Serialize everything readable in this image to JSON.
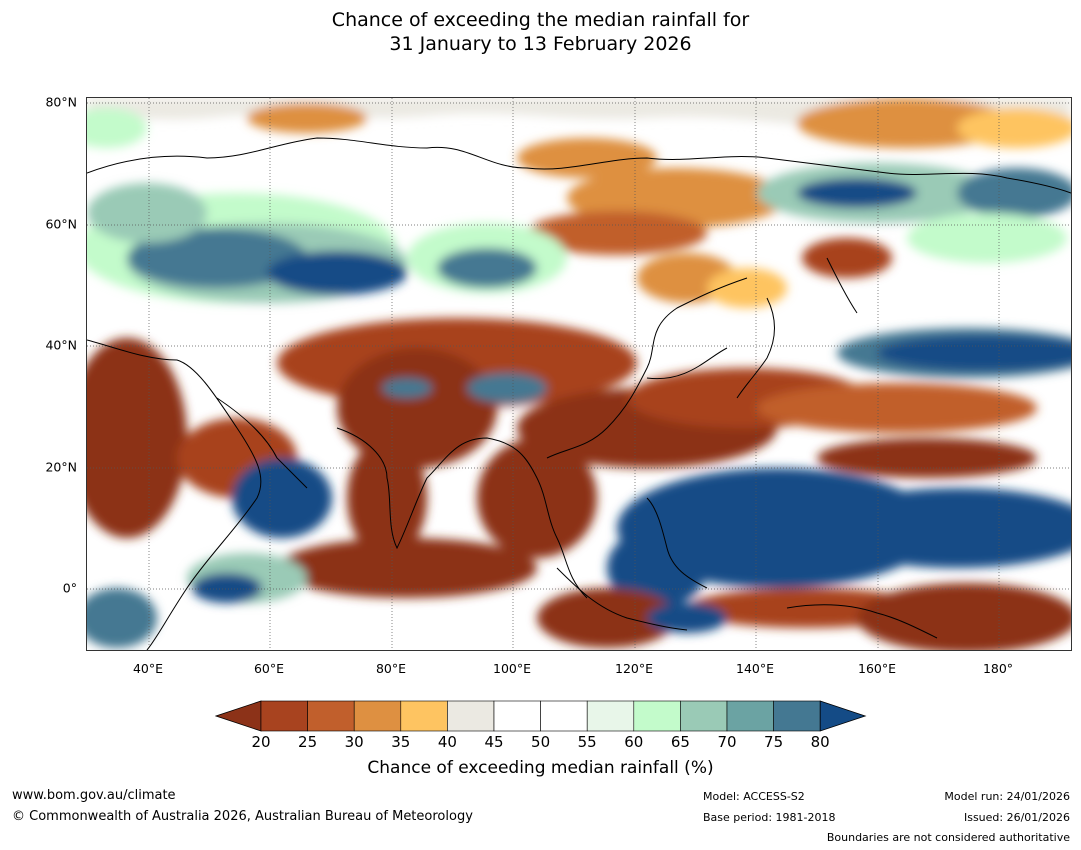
{
  "title": {
    "line1": "Chance of exceeding the median rainfall for",
    "line2": "31 January to 13 February 2026"
  },
  "axes": {
    "lat_labels": [
      "80°N",
      "60°N",
      "40°N",
      "20°N",
      "0°"
    ],
    "lon_labels": [
      "40°E",
      "60°E",
      "80°E",
      "100°E",
      "120°E",
      "140°E",
      "160°E",
      "180°"
    ]
  },
  "colorbar": {
    "ticks": [
      "20",
      "25",
      "30",
      "35",
      "40",
      "45",
      "50",
      "55",
      "60",
      "65",
      "70",
      "75",
      "80"
    ],
    "colors": [
      "#8c3218",
      "#a8431f",
      "#c15f2c",
      "#de9041",
      "#fec461",
      "#ebe9e2",
      "#ffffff",
      "#ffffff",
      "#e8f6e9",
      "#c3fbcb",
      "#9acab6",
      "#6ba3a3",
      "#447892",
      "#144b86"
    ],
    "label": "Chance of exceeding median rainfall (%)"
  },
  "footer": {
    "website": "www.bom.gov.au/climate",
    "copyright": "© Commonwealth of Australia 2026, Australian Bureau of Meteorology",
    "model": "Model: ACCESS-S2",
    "base_period": "Base period: 1981-2018",
    "model_run": "Model run: 24/01/2026",
    "issued": "Issued: 26/01/2026",
    "disclaimer": "Boundaries are not considered authoritative"
  }
}
